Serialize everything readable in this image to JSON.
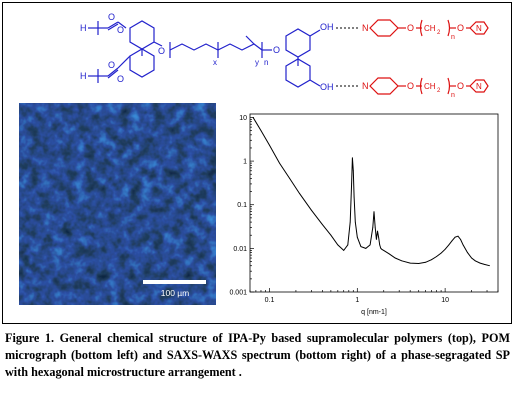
{
  "scheme": {
    "h_label": "H",
    "x_label": "x",
    "y_label": "y",
    "n_label": "n",
    "sub_n": "n",
    "ch2": "CH",
    "ch2_sub": "2",
    "o": "O",
    "oh": "OH",
    "n_atom": "N",
    "colors": {
      "blue": "#2222cc",
      "red": "#dd1111"
    }
  },
  "micrograph": {
    "scale_label": "100 µm"
  },
  "chart_data": {
    "type": "line",
    "xscale": "log",
    "yscale": "log",
    "xlim": [
      0.06,
      40
    ],
    "ylim": [
      0.001,
      12
    ],
    "xlabel": "q [nm-1]",
    "ylabel": "",
    "x_ticks": [
      0.1,
      1,
      10
    ],
    "x_tick_labels": [
      "0.1",
      "1",
      "10"
    ],
    "y_ticks": [
      0.001,
      0.01,
      0.1,
      1,
      10
    ],
    "y_tick_labels": [
      "0.001",
      "0.01",
      "0.1",
      "1",
      "10"
    ],
    "grid": false,
    "series": [
      {
        "x": [
          0.065,
          0.08,
          0.1,
          0.13,
          0.17,
          0.22,
          0.3,
          0.4,
          0.5,
          0.6,
          0.7,
          0.78,
          0.83,
          0.86,
          0.88,
          0.9,
          0.92,
          0.95,
          1.0,
          1.1,
          1.25,
          1.4,
          1.5,
          1.55,
          1.6,
          1.65,
          1.7,
          1.75,
          1.8,
          1.85,
          1.9,
          2.0,
          2.3,
          2.7,
          3.2,
          4.0,
          5.0,
          6.0,
          7.0,
          8.0,
          9.0,
          10.0,
          11.0,
          12.0,
          13.0,
          14.0,
          15.0,
          16.0,
          18.0,
          20.0,
          22.0,
          25.0,
          28.0,
          32.0
        ],
        "y": [
          10,
          5,
          2.3,
          0.9,
          0.4,
          0.18,
          0.075,
          0.035,
          0.02,
          0.012,
          0.009,
          0.012,
          0.04,
          0.3,
          1.2,
          0.6,
          0.15,
          0.04,
          0.018,
          0.011,
          0.01,
          0.012,
          0.03,
          0.07,
          0.03,
          0.016,
          0.025,
          0.018,
          0.012,
          0.01,
          0.0095,
          0.009,
          0.0075,
          0.006,
          0.0052,
          0.0046,
          0.0045,
          0.0048,
          0.0055,
          0.0065,
          0.0078,
          0.0095,
          0.012,
          0.015,
          0.018,
          0.019,
          0.016,
          0.012,
          0.008,
          0.006,
          0.0052,
          0.0046,
          0.0043,
          0.004
        ]
      }
    ]
  },
  "caption": {
    "text": "Figure 1. General chemical structure of IPA-Py based supramolecular polymers (top), POM micrograph (bottom left) and SAXS-WAXS spectrum (bottom right) of a phase-segragated SP with hexagonal microstructure arrangement ."
  }
}
